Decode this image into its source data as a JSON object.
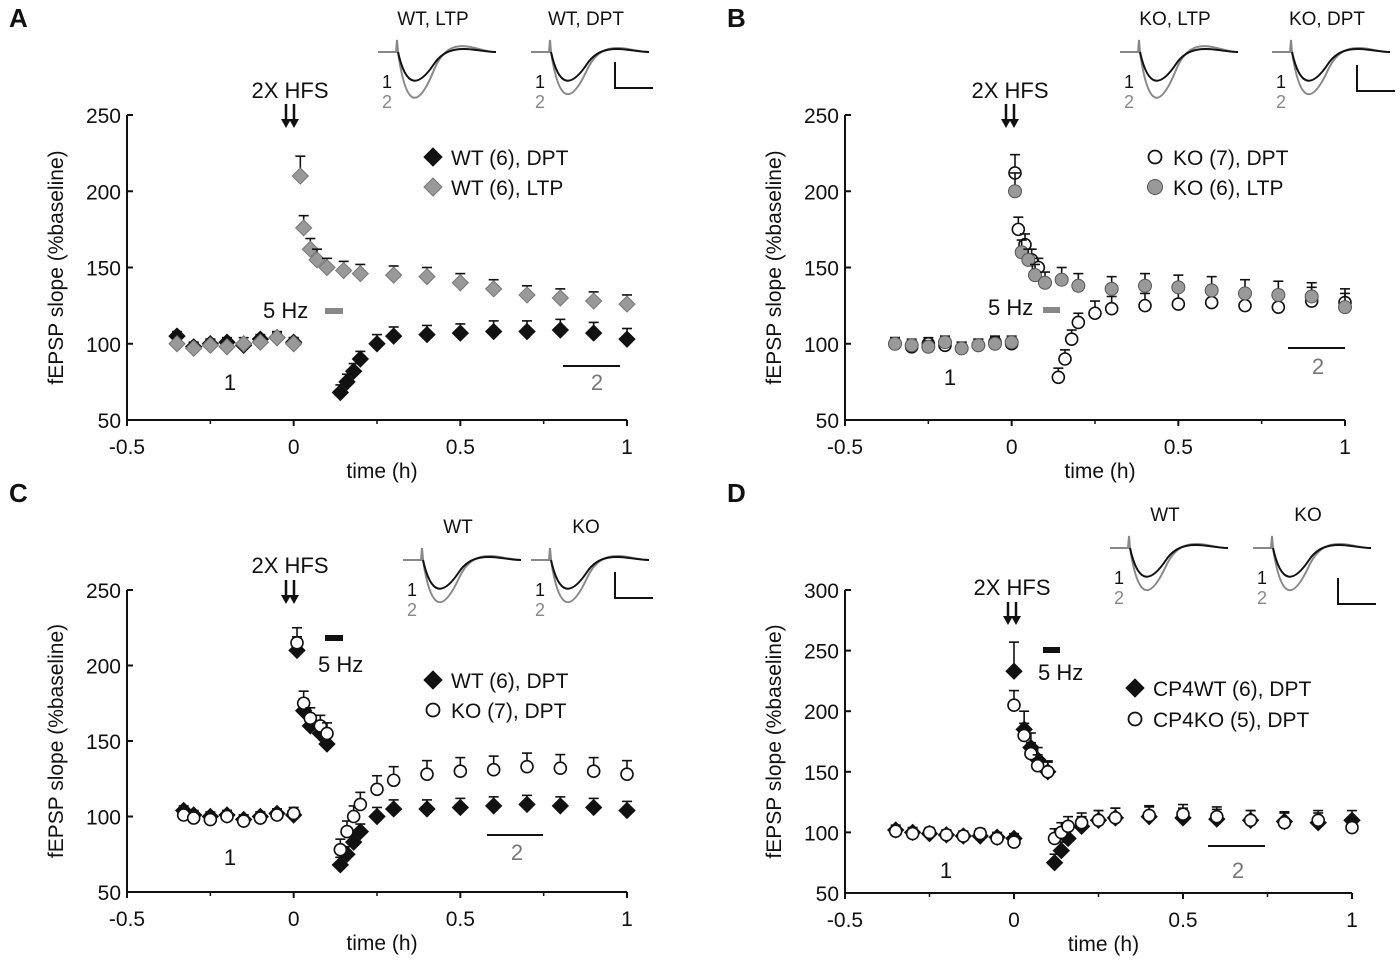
{
  "figure": {
    "panels": [
      {
        "letter": "A",
        "ylim": [
          50,
          250
        ],
        "yticks": [
          "50",
          "100",
          "150",
          "200",
          "250"
        ],
        "xticks": [
          "-0.5",
          "0",
          "0.5",
          "1"
        ],
        "xlabel": "time (h)",
        "ylabel": "fEPSP slope (%baseline)",
        "hfs_label": "2X HFS",
        "hz_label": "5 Hz",
        "hz_color": "#888888",
        "label1": "1",
        "label2": "2",
        "legend": [
          "WT (6), DPT",
          "WT (6), LTP"
        ],
        "traces": [
          "WT, LTP",
          "WT, DPT"
        ],
        "trace_num1": "1",
        "trace_num2": "2"
      },
      {
        "letter": "B",
        "ylim": [
          50,
          250
        ],
        "yticks": [
          "50",
          "100",
          "150",
          "200",
          "250"
        ],
        "xticks": [
          "-0.5",
          "0",
          "0.5",
          "1"
        ],
        "xlabel": "time (h)",
        "ylabel": "fEPSP slope (%baseline)",
        "hfs_label": "2X HFS",
        "hz_label": "5 Hz",
        "hz_color": "#888888",
        "label1": "1",
        "label2": "2",
        "legend": [
          "KO (7), DPT",
          "KO (6), LTP"
        ],
        "traces": [
          "KO, LTP",
          "KO, DPT"
        ],
        "trace_num1": "1",
        "trace_num2": "2"
      },
      {
        "letter": "C",
        "ylim": [
          50,
          250
        ],
        "yticks": [
          "50",
          "100",
          "150",
          "200",
          "250"
        ],
        "xticks": [
          "-0.5",
          "0",
          "0.5",
          "1"
        ],
        "xlabel": "time (h)",
        "ylabel": "fEPSP slope (%baseline)",
        "hfs_label": "2X HFS",
        "hz_label": "5 Hz",
        "hz_color": "#111111",
        "label1": "1",
        "label2": "2",
        "legend": [
          "WT (6), DPT",
          "KO (7), DPT"
        ],
        "traces": [
          "WT",
          "KO"
        ],
        "trace_num1": "1",
        "trace_num2": "2"
      },
      {
        "letter": "D",
        "ylim": [
          50,
          300
        ],
        "yticks": [
          "50",
          "100",
          "150",
          "200",
          "250",
          "300"
        ],
        "xticks": [
          "-0.5",
          "0",
          "0.5",
          "1"
        ],
        "xlabel": "time (h)",
        "ylabel": "fEPSP slope (%baseline)",
        "hfs_label": "2X HFS",
        "hz_label": "5 Hz",
        "hz_color": "#111111",
        "label1": "1",
        "label2": "2",
        "legend": [
          "CP4WT (6), DPT",
          "CP4KO (5), DPT"
        ],
        "traces": [
          "WT",
          "KO"
        ],
        "trace_num1": "1",
        "trace_num2": "2"
      }
    ]
  },
  "chart_data": [
    {
      "type": "scatter",
      "panel": "A",
      "xlabel": "time (h)",
      "ylabel": "fEPSP slope (%baseline)",
      "xlim": [
        -0.5,
        1.0
      ],
      "ylim": [
        50,
        250
      ],
      "series": [
        {
          "name": "WT (6), DPT",
          "marker": "diamond",
          "color": "#111111",
          "x": [
            -0.35,
            -0.3,
            -0.25,
            -0.2,
            -0.15,
            -0.1,
            -0.05,
            0.0,
            0.14,
            0.16,
            0.18,
            0.2,
            0.25,
            0.3,
            0.4,
            0.5,
            0.6,
            0.7,
            0.8,
            0.9,
            1.0
          ],
          "y": [
            105,
            98,
            100,
            101,
            99,
            103,
            104,
            101,
            68,
            75,
            82,
            90,
            100,
            105,
            106,
            107,
            108,
            108,
            109,
            107,
            103
          ],
          "err": [
            3,
            3,
            3,
            3,
            3,
            3,
            3,
            3,
            5,
            5,
            5,
            5,
            6,
            6,
            6,
            6,
            7,
            7,
            7,
            7,
            7
          ]
        },
        {
          "name": "WT (6), LTP",
          "marker": "diamond",
          "color": "#999999",
          "x": [
            -0.35,
            -0.3,
            -0.25,
            -0.2,
            -0.15,
            -0.1,
            -0.05,
            0.0,
            0.02,
            0.03,
            0.05,
            0.07,
            0.1,
            0.15,
            0.2,
            0.3,
            0.4,
            0.5,
            0.6,
            0.7,
            0.8,
            0.9,
            1.0
          ],
          "y": [
            100,
            97,
            99,
            98,
            100,
            101,
            104,
            100,
            210,
            176,
            162,
            155,
            150,
            148,
            146,
            145,
            144,
            140,
            136,
            132,
            130,
            128,
            126
          ],
          "err": [
            4,
            4,
            4,
            4,
            4,
            4,
            4,
            4,
            13,
            8,
            7,
            7,
            6,
            6,
            6,
            6,
            6,
            6,
            6,
            6,
            6,
            6,
            6
          ]
        }
      ]
    },
    {
      "type": "scatter",
      "panel": "B",
      "xlabel": "time (h)",
      "ylabel": "fEPSP slope (%baseline)",
      "xlim": [
        -0.5,
        1.0
      ],
      "ylim": [
        50,
        250
      ],
      "series": [
        {
          "name": "KO (7), DPT",
          "marker": "circle-open",
          "color": "#111111",
          "x": [
            -0.35,
            -0.3,
            -0.25,
            -0.2,
            -0.15,
            -0.1,
            -0.05,
            0.0,
            0.01,
            0.02,
            0.04,
            0.06,
            0.08,
            0.14,
            0.16,
            0.18,
            0.2,
            0.25,
            0.3,
            0.4,
            0.5,
            0.6,
            0.7,
            0.8,
            0.9,
            1.0
          ],
          "y": [
            100,
            98,
            100,
            99,
            97,
            99,
            101,
            100,
            212,
            175,
            165,
            155,
            150,
            78,
            90,
            103,
            114,
            120,
            123,
            125,
            126,
            127,
            125,
            124,
            128,
            127
          ],
          "err": [
            4,
            4,
            4,
            4,
            4,
            4,
            4,
            4,
            12,
            8,
            7,
            7,
            6,
            6,
            6,
            6,
            6,
            8,
            8,
            8,
            9,
            9,
            9,
            9,
            9,
            9
          ]
        },
        {
          "name": "KO (6), LTP",
          "marker": "circle",
          "color": "#999999",
          "x": [
            -0.35,
            -0.3,
            -0.25,
            -0.2,
            -0.15,
            -0.1,
            -0.05,
            0.0,
            0.01,
            0.03,
            0.05,
            0.07,
            0.1,
            0.15,
            0.2,
            0.3,
            0.4,
            0.5,
            0.6,
            0.7,
            0.8,
            0.9,
            1.0
          ],
          "y": [
            100,
            99,
            98,
            101,
            97,
            99,
            100,
            101,
            200,
            160,
            155,
            145,
            140,
            142,
            138,
            136,
            138,
            137,
            135,
            133,
            132,
            131,
            124
          ],
          "err": [
            4,
            4,
            4,
            4,
            4,
            4,
            4,
            4,
            12,
            8,
            7,
            7,
            7,
            8,
            8,
            8,
            8,
            8,
            9,
            9,
            9,
            9,
            9
          ]
        }
      ]
    },
    {
      "type": "scatter",
      "panel": "C",
      "xlabel": "time (h)",
      "ylabel": "fEPSP slope (%baseline)",
      "xlim": [
        -0.5,
        1.0
      ],
      "ylim": [
        50,
        250
      ],
      "series": [
        {
          "name": "WT (6), DPT",
          "marker": "diamond",
          "color": "#111111",
          "x": [
            -0.33,
            -0.3,
            -0.25,
            -0.2,
            -0.15,
            -0.1,
            -0.05,
            0.0,
            0.01,
            0.03,
            0.05,
            0.08,
            0.1,
            0.14,
            0.16,
            0.18,
            0.2,
            0.25,
            0.3,
            0.4,
            0.5,
            0.6,
            0.7,
            0.8,
            0.9,
            1.0
          ],
          "y": [
            104,
            101,
            100,
            101,
            98,
            100,
            102,
            101,
            210,
            170,
            160,
            155,
            148,
            68,
            75,
            83,
            90,
            100,
            105,
            105,
            106,
            107,
            108,
            107,
            106,
            104
          ],
          "err": [
            3,
            3,
            3,
            3,
            3,
            3,
            3,
            3,
            9,
            8,
            7,
            7,
            6,
            5,
            5,
            5,
            5,
            6,
            6,
            6,
            6,
            6,
            6,
            6,
            6,
            6
          ]
        },
        {
          "name": "KO (7), DPT",
          "marker": "circle-open",
          "color": "#111111",
          "x": [
            -0.33,
            -0.3,
            -0.25,
            -0.2,
            -0.15,
            -0.1,
            -0.05,
            0.0,
            0.01,
            0.03,
            0.05,
            0.08,
            0.1,
            0.14,
            0.16,
            0.18,
            0.2,
            0.25,
            0.3,
            0.4,
            0.5,
            0.6,
            0.7,
            0.8,
            0.9,
            1.0
          ],
          "y": [
            101,
            99,
            98,
            100,
            97,
            99,
            101,
            102,
            215,
            175,
            165,
            160,
            155,
            78,
            90,
            100,
            108,
            118,
            124,
            128,
            130,
            131,
            133,
            132,
            130,
            128
          ],
          "err": [
            4,
            4,
            4,
            4,
            4,
            4,
            4,
            4,
            10,
            8,
            7,
            7,
            7,
            7,
            7,
            7,
            8,
            9,
            9,
            9,
            9,
            9,
            9,
            9,
            9,
            9
          ]
        }
      ]
    },
    {
      "type": "scatter",
      "panel": "D",
      "xlabel": "time (h)",
      "ylabel": "fEPSP slope (%baseline)",
      "xlim": [
        -0.5,
        1.0
      ],
      "ylim": [
        50,
        300
      ],
      "series": [
        {
          "name": "CP4WT (6), DPT",
          "marker": "diamond",
          "color": "#111111",
          "x": [
            -0.35,
            -0.3,
            -0.25,
            -0.2,
            -0.15,
            -0.1,
            -0.05,
            0.0,
            0.0,
            0.03,
            0.05,
            0.07,
            0.1,
            0.12,
            0.14,
            0.16,
            0.2,
            0.25,
            0.3,
            0.4,
            0.5,
            0.6,
            0.7,
            0.8,
            0.9,
            1.0
          ],
          "y": [
            102,
            100,
            99,
            98,
            97,
            97,
            96,
            95,
            233,
            185,
            170,
            160,
            150,
            75,
            85,
            95,
            105,
            110,
            112,
            113,
            112,
            111,
            110,
            109,
            108,
            110
          ],
          "err": [
            4,
            4,
            4,
            4,
            4,
            4,
            4,
            4,
            24,
            15,
            12,
            10,
            9,
            7,
            7,
            8,
            8,
            8,
            8,
            8,
            8,
            8,
            8,
            8,
            8,
            8
          ]
        },
        {
          "name": "CP4KO (5), DPT",
          "marker": "circle-open",
          "color": "#111111",
          "x": [
            -0.35,
            -0.3,
            -0.25,
            -0.2,
            -0.15,
            -0.1,
            -0.05,
            0.0,
            0.0,
            0.03,
            0.05,
            0.07,
            0.1,
            0.12,
            0.14,
            0.16,
            0.2,
            0.25,
            0.3,
            0.4,
            0.5,
            0.6,
            0.7,
            0.8,
            0.9,
            1.0
          ],
          "y": [
            101,
            99,
            100,
            98,
            97,
            99,
            95,
            92,
            205,
            180,
            165,
            155,
            150,
            95,
            100,
            105,
            108,
            110,
            112,
            114,
            115,
            113,
            110,
            108,
            110,
            104
          ],
          "err": [
            4,
            4,
            4,
            4,
            4,
            4,
            4,
            4,
            12,
            10,
            9,
            9,
            8,
            8,
            8,
            8,
            8,
            8,
            8,
            8,
            8,
            8,
            8,
            8,
            8,
            8
          ]
        }
      ]
    }
  ]
}
